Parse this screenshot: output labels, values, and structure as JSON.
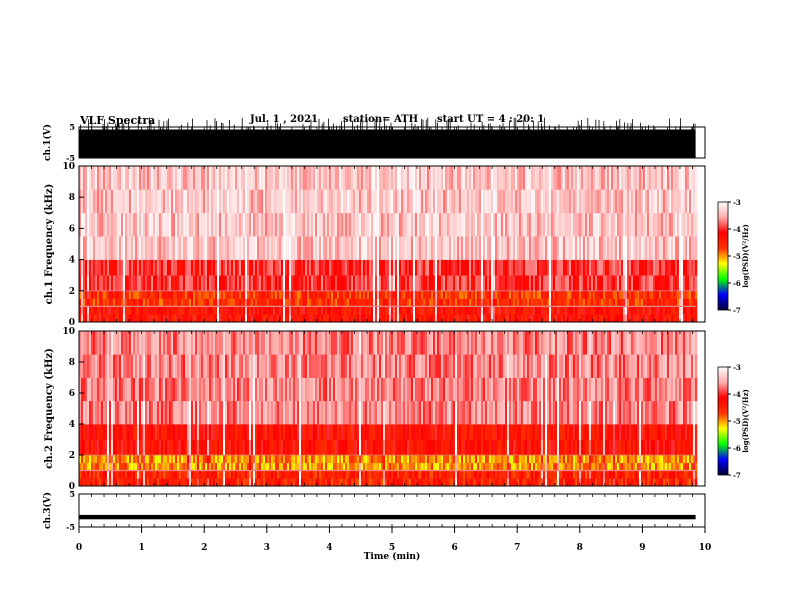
{
  "header": {
    "title": "VLF Spectra",
    "date": "Jul. 1 , 2021",
    "station": "station= ATH",
    "start_ut": "start UT =  4 : 20: 1"
  },
  "colors": {
    "background": "#ffffff",
    "axes": "#000000",
    "spectrogram_high": "#e8282a",
    "spectrogram_mid": "#e8e820",
    "spectrogram_low": "#30e030",
    "colorbar_stops": [
      "#000033",
      "#0000ff",
      "#00ff00",
      "#ffff00",
      "#ff3300",
      "#ff0000",
      "#ffaaaa",
      "#ffffff"
    ]
  },
  "chart_data": [
    {
      "type": "line",
      "name": "ch1-waveform",
      "ylabel": "ch.1(V)",
      "ylim": [
        -5,
        5
      ],
      "yticks": [
        "5",
        "-5"
      ],
      "x_range_min": [
        0,
        9.85
      ],
      "description_values": {
        "typical_amplitude_v": [
          -5,
          5
        ],
        "saturated": true
      }
    },
    {
      "type": "heatmap",
      "name": "ch1-spectrogram",
      "ylabel": "ch.1 Frequency (kHz)",
      "ylim": [
        0,
        10
      ],
      "yticks": [
        "0",
        "2",
        "4",
        "6",
        "8",
        "10"
      ],
      "x_range_min": [
        0,
        9.85
      ],
      "band_levels": [
        {
          "f_khz": [
            0,
            1
          ],
          "log_psd": -4.3
        },
        {
          "f_khz": [
            1,
            2
          ],
          "log_psd": -4.6
        },
        {
          "f_khz": [
            2,
            4
          ],
          "log_psd": -4.0
        },
        {
          "f_khz": [
            4,
            10
          ],
          "log_psd": -3.4
        }
      ],
      "colorbar": {
        "label": "log(PSD)(V²/Hz)",
        "range": [
          -7,
          -3
        ],
        "ticks": [
          "-3",
          "-4",
          "-5",
          "-6",
          "-7"
        ]
      }
    },
    {
      "type": "heatmap",
      "name": "ch2-spectrogram",
      "ylabel": "ch.2 Frequency (kHz)",
      "ylim": [
        0,
        10
      ],
      "yticks": [
        "0",
        "2",
        "4",
        "6",
        "8",
        "10"
      ],
      "x_range_min": [
        0,
        9.85
      ],
      "band_levels": [
        {
          "f_khz": [
            0,
            1
          ],
          "log_psd": -4.5
        },
        {
          "f_khz": [
            1,
            2
          ],
          "log_psd": -5.0
        },
        {
          "f_khz": [
            2,
            4
          ],
          "log_psd": -4.3
        },
        {
          "f_khz": [
            4,
            10
          ],
          "log_psd": -3.7
        }
      ],
      "colorbar": {
        "label": "log(PSD)(V²/Hz)",
        "range": [
          -7,
          -3
        ],
        "ticks": [
          "-3",
          "-4",
          "-5",
          "-6",
          "-7"
        ]
      }
    },
    {
      "type": "line",
      "name": "ch3-waveform",
      "ylabel": "ch.3(V)",
      "ylim": [
        -5,
        5
      ],
      "yticks": [
        "5",
        "-5"
      ],
      "x_range_min": [
        0,
        9.85
      ],
      "description_values": {
        "offset_v": -2,
        "amplitude_v": 0.3
      }
    }
  ],
  "xaxis": {
    "label": "Time (min)",
    "range": [
      0,
      10
    ],
    "ticks": [
      "0",
      "1",
      "2",
      "3",
      "4",
      "5",
      "6",
      "7",
      "8",
      "9",
      "10"
    ]
  }
}
